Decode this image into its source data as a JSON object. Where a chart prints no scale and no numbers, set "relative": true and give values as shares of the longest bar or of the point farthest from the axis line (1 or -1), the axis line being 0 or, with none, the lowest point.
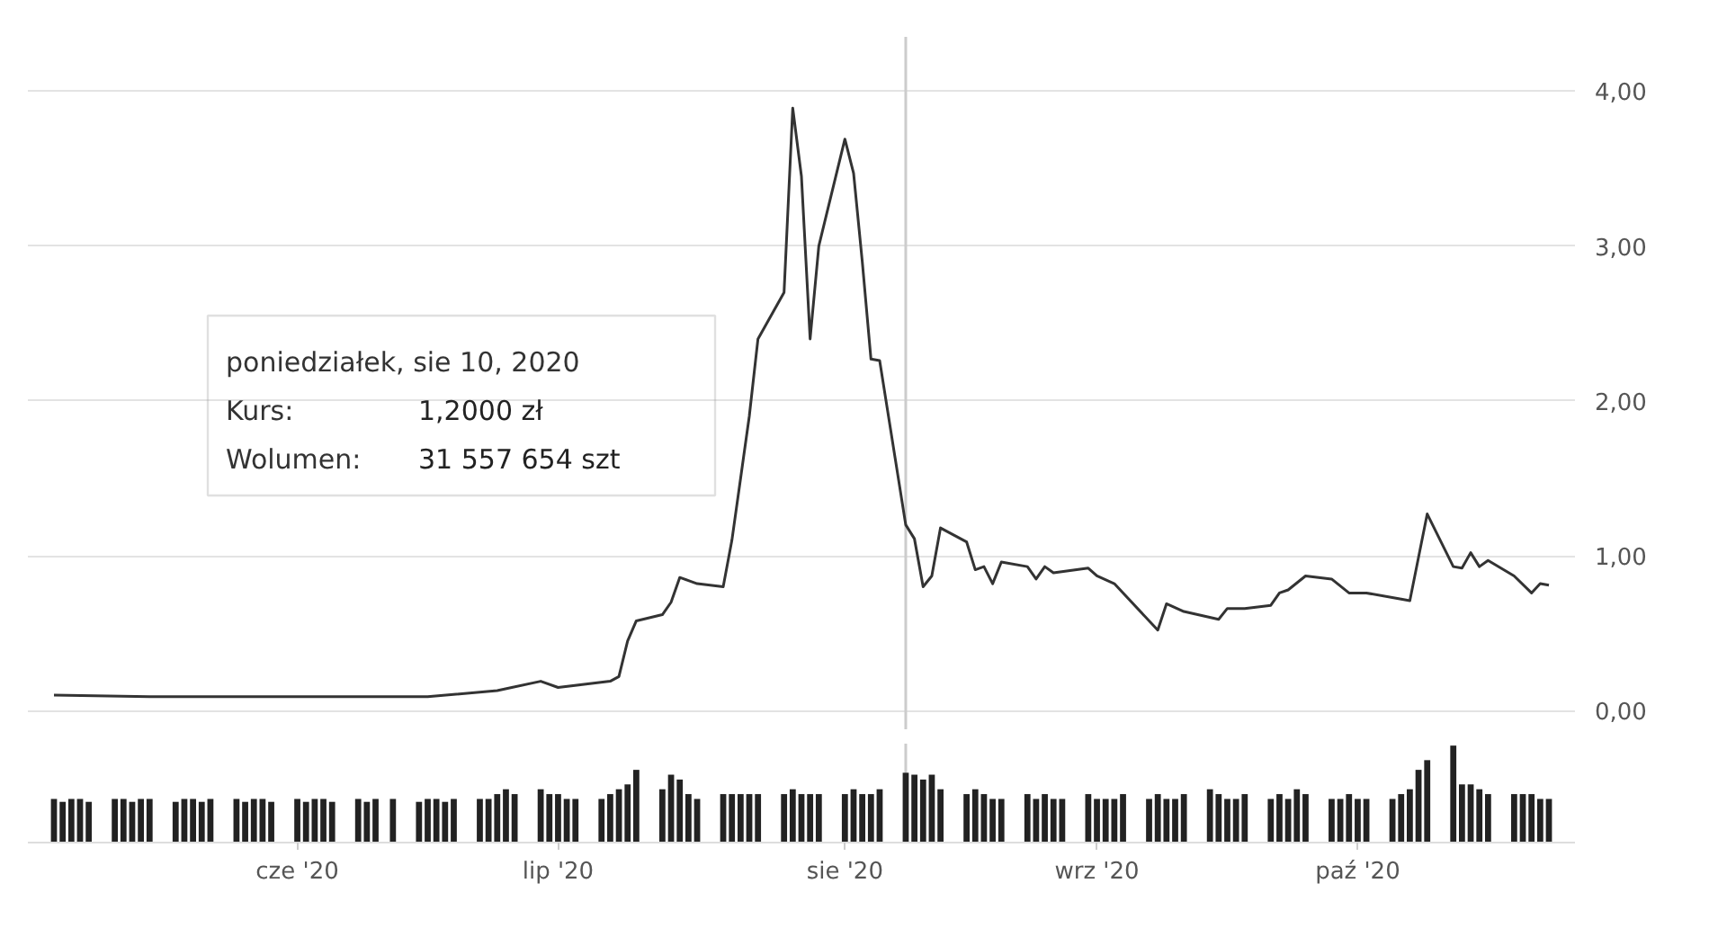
{
  "chart_data": [
    {
      "type": "line",
      "xlim": [
        "2020-05-01",
        "2020-10-26"
      ],
      "ylim": [
        -0.12,
        4.35
      ],
      "yticks": [
        {
          "value": 0,
          "label": "0,00"
        },
        {
          "value": 1,
          "label": "1,00"
        },
        {
          "value": 2,
          "label": "2,00"
        },
        {
          "value": 3,
          "label": "3,00"
        },
        {
          "value": 4,
          "label": "4,00"
        }
      ],
      "grid": "y",
      "tick_labels": "y",
      "ref_lines": [
        {
          "axis": "x",
          "value": "2020-08-10",
          "color": "#cccccc"
        }
      ],
      "annotations": [
        "poniedziałek, sie 10, 2020",
        "Kurs:",
        "1,2000 zł",
        "Wolumen:",
        "31 557 654 szt"
      ],
      "series": [
        {
          "color": "#333333",
          "x": [
            "2020-05-04",
            "2020-05-15",
            "2020-06-01",
            "2020-06-16",
            "2020-06-24",
            "2020-06-29",
            "2020-07-01",
            "2020-07-07",
            "2020-07-08",
            "2020-07-09",
            "2020-07-10",
            "2020-07-13",
            "2020-07-14",
            "2020-07-15",
            "2020-07-16",
            "2020-07-17",
            "2020-07-20",
            "2020-07-21",
            "2020-07-22",
            "2020-07-23",
            "2020-07-24",
            "2020-07-27",
            "2020-07-28",
            "2020-07-29",
            "2020-07-30",
            "2020-07-31",
            "2020-08-03",
            "2020-08-04",
            "2020-08-05",
            "2020-08-06",
            "2020-08-07",
            "2020-08-10",
            "2020-08-11",
            "2020-08-12",
            "2020-08-13",
            "2020-08-14",
            "2020-08-17",
            "2020-08-18",
            "2020-08-19",
            "2020-08-20",
            "2020-08-21",
            "2020-08-24",
            "2020-08-25",
            "2020-08-26",
            "2020-08-27",
            "2020-08-31",
            "2020-09-01",
            "2020-09-03",
            "2020-09-08",
            "2020-09-09",
            "2020-09-11",
            "2020-09-15",
            "2020-09-16",
            "2020-09-18",
            "2020-09-21",
            "2020-09-22",
            "2020-09-23",
            "2020-09-25",
            "2020-09-28",
            "2020-09-30",
            "2020-10-02",
            "2020-10-06",
            "2020-10-07",
            "2020-10-09",
            "2020-10-12",
            "2020-10-13",
            "2020-10-14",
            "2020-10-15",
            "2020-10-16",
            "2020-10-19",
            "2020-10-21",
            "2020-10-22",
            "2020-10-23"
          ],
          "values": [
            0.1,
            0.09,
            0.09,
            0.09,
            0.13,
            0.19,
            0.15,
            0.19,
            0.22,
            0.45,
            0.58,
            0.62,
            0.7,
            0.86,
            0.84,
            0.82,
            0.8,
            1.1,
            1.5,
            1.9,
            2.4,
            2.7,
            3.89,
            3.45,
            2.4,
            3.0,
            3.69,
            3.47,
            2.9,
            2.27,
            2.26,
            1.2,
            1.11,
            0.8,
            0.87,
            1.18,
            1.09,
            0.91,
            0.93,
            0.82,
            0.96,
            0.93,
            0.85,
            0.93,
            0.89,
            0.92,
            0.87,
            0.82,
            0.52,
            0.69,
            0.64,
            0.59,
            0.66,
            0.66,
            0.68,
            0.76,
            0.78,
            0.87,
            0.85,
            0.76,
            0.76,
            0.72,
            0.71,
            1.27,
            0.93,
            0.92,
            1.02,
            0.93,
            0.97,
            0.87,
            0.76,
            0.82,
            0.81
          ]
        }
      ]
    },
    {
      "type": "bar",
      "relative": true,
      "xlim": [
        "2020-05-01",
        "2020-10-26"
      ],
      "tick_labels": "x",
      "xticks": [
        {
          "value": "2020-06-01",
          "label": "cze '20"
        },
        {
          "value": "2020-07-01",
          "label": "lip '20"
        },
        {
          "value": "2020-08-03",
          "label": "sie '20"
        },
        {
          "value": "2020-09-01",
          "label": "wrz '20"
        },
        {
          "value": "2020-10-01",
          "label": "paź '20"
        }
      ],
      "ref_lines": [
        {
          "axis": "x",
          "value": "2020-08-10",
          "color": "#cccccc"
        }
      ],
      "series": [
        {
          "color": "#222222",
          "x": [
            "2020-05-04",
            "2020-05-05",
            "2020-05-06",
            "2020-05-07",
            "2020-05-08",
            "2020-05-11",
            "2020-05-12",
            "2020-05-13",
            "2020-05-14",
            "2020-05-15",
            "2020-05-18",
            "2020-05-19",
            "2020-05-20",
            "2020-05-21",
            "2020-05-22",
            "2020-05-25",
            "2020-05-26",
            "2020-05-27",
            "2020-05-28",
            "2020-05-29",
            "2020-06-01",
            "2020-06-02",
            "2020-06-03",
            "2020-06-04",
            "2020-06-05",
            "2020-06-08",
            "2020-06-09",
            "2020-06-10",
            "2020-06-12",
            "2020-06-15",
            "2020-06-16",
            "2020-06-17",
            "2020-06-18",
            "2020-06-19",
            "2020-06-22",
            "2020-06-23",
            "2020-06-24",
            "2020-06-25",
            "2020-06-26",
            "2020-06-29",
            "2020-06-30",
            "2020-07-01",
            "2020-07-02",
            "2020-07-03",
            "2020-07-06",
            "2020-07-07",
            "2020-07-08",
            "2020-07-09",
            "2020-07-10",
            "2020-07-13",
            "2020-07-14",
            "2020-07-15",
            "2020-07-16",
            "2020-07-17",
            "2020-07-20",
            "2020-07-21",
            "2020-07-22",
            "2020-07-23",
            "2020-07-24",
            "2020-07-27",
            "2020-07-28",
            "2020-07-29",
            "2020-07-30",
            "2020-07-31",
            "2020-08-03",
            "2020-08-04",
            "2020-08-05",
            "2020-08-06",
            "2020-08-07",
            "2020-08-10",
            "2020-08-11",
            "2020-08-12",
            "2020-08-13",
            "2020-08-14",
            "2020-08-17",
            "2020-08-18",
            "2020-08-19",
            "2020-08-20",
            "2020-08-21",
            "2020-08-24",
            "2020-08-25",
            "2020-08-26",
            "2020-08-27",
            "2020-08-28",
            "2020-08-31",
            "2020-09-01",
            "2020-09-02",
            "2020-09-03",
            "2020-09-04",
            "2020-09-07",
            "2020-09-08",
            "2020-09-09",
            "2020-09-10",
            "2020-09-11",
            "2020-09-14",
            "2020-09-15",
            "2020-09-16",
            "2020-09-17",
            "2020-09-18",
            "2020-09-21",
            "2020-09-22",
            "2020-09-23",
            "2020-09-24",
            "2020-09-25",
            "2020-09-28",
            "2020-09-29",
            "2020-09-30",
            "2020-10-01",
            "2020-10-02",
            "2020-10-05",
            "2020-10-06",
            "2020-10-07",
            "2020-10-08",
            "2020-10-09",
            "2020-10-12",
            "2020-10-13",
            "2020-10-14",
            "2020-10-15",
            "2020-10-16",
            "2020-10-19",
            "2020-10-20",
            "2020-10-21",
            "2020-10-22",
            "2020-10-23"
          ],
          "values": [
            0.45,
            0.42,
            0.45,
            0.45,
            0.42,
            0.45,
            0.45,
            0.42,
            0.45,
            0.45,
            0.42,
            0.45,
            0.45,
            0.42,
            0.45,
            0.45,
            0.42,
            0.45,
            0.45,
            0.42,
            0.45,
            0.42,
            0.45,
            0.45,
            0.42,
            0.45,
            0.42,
            0.45,
            0.45,
            0.42,
            0.45,
            0.45,
            0.42,
            0.45,
            0.45,
            0.45,
            0.5,
            0.55,
            0.5,
            0.55,
            0.5,
            0.5,
            0.45,
            0.45,
            0.45,
            0.5,
            0.55,
            0.6,
            0.75,
            0.55,
            0.7,
            0.65,
            0.5,
            0.45,
            0.5,
            0.5,
            0.5,
            0.5,
            0.5,
            0.5,
            0.55,
            0.5,
            0.5,
            0.5,
            0.5,
            0.55,
            0.5,
            0.5,
            0.55,
            0.72,
            0.7,
            0.65,
            0.7,
            0.55,
            0.5,
            0.55,
            0.5,
            0.45,
            0.45,
            0.5,
            0.45,
            0.5,
            0.45,
            0.45,
            0.5,
            0.45,
            0.45,
            0.45,
            0.5,
            0.45,
            0.5,
            0.45,
            0.45,
            0.5,
            0.55,
            0.5,
            0.45,
            0.45,
            0.5,
            0.45,
            0.5,
            0.45,
            0.55,
            0.5,
            0.45,
            0.45,
            0.5,
            0.45,
            0.45,
            0.45,
            0.5,
            0.55,
            0.75,
            0.85,
            1.0,
            0.6,
            0.6,
            0.55,
            0.5,
            0.5,
            0.5,
            0.5,
            0.45,
            0.45
          ]
        }
      ]
    }
  ]
}
